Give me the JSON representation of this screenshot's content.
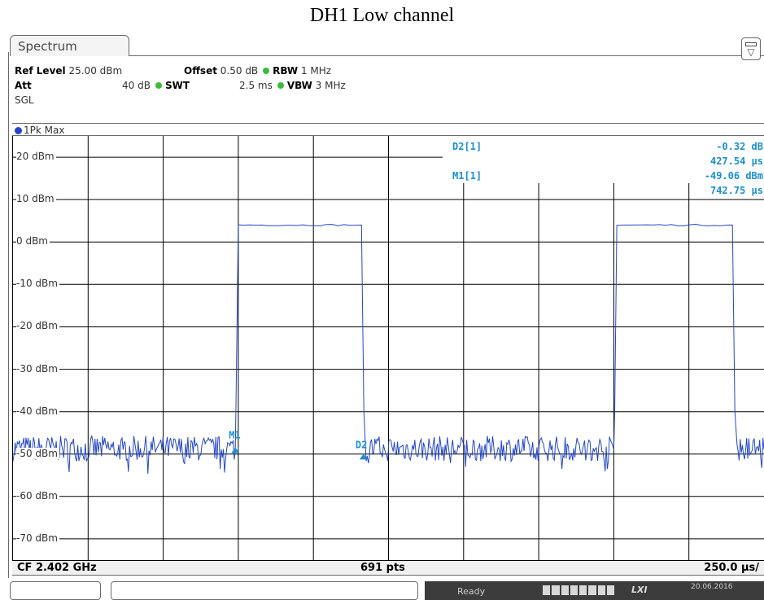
{
  "page": {
    "title": "DH1 Low channel"
  },
  "tab": {
    "label": "Spectrum"
  },
  "settings": {
    "ref_level_label": "Ref Level",
    "ref_level_value": "25.00 dBm",
    "offset_label": "Offset",
    "offset_value": "0.50 dB",
    "rbw_label": "RBW",
    "rbw_value": "1 MHz",
    "att_label": "Att",
    "att_value": "40 dB",
    "swt_label": "SWT",
    "swt_value": "2.5 ms",
    "vbw_label": "VBW",
    "vbw_value": "3 MHz",
    "mode": "SGL"
  },
  "trace": {
    "label": "1Pk Max",
    "color": "#2346c8"
  },
  "markers": {
    "d2_label": "D2[1]",
    "d2_level": "-0.32 dB",
    "d2_time": "427.54 µs",
    "m1_label": "M1[1]",
    "m1_level": "-49.06 dBm",
    "m1_time": "742.75 µs",
    "m1_tag": "M1",
    "d2_tag": "D2",
    "marker_color": "#1a8fd0"
  },
  "footer": {
    "cf": "CF 2.402 GHz",
    "points": "691 pts",
    "span_per_div": "250.0 µs/"
  },
  "status": {
    "ready": "Ready",
    "date": "20.06.2016"
  },
  "chart_data": {
    "type": "line",
    "xlabel": "",
    "ylabel": "",
    "ylim": [
      -75,
      25
    ],
    "xlim_us": [
      0,
      2500
    ],
    "grid": true,
    "y_ticks": [
      "20 dBm",
      "10 dBm",
      "0 dBm",
      "-10 dBm",
      "-20 dBm",
      "-30 dBm",
      "-40 dBm",
      "-50 dBm",
      "-60 dBm",
      "-70 dBm"
    ],
    "series": [
      {
        "x_us": [
          0,
          740,
          742,
          750,
          1160,
          1168,
          1172,
          2000,
          2003,
          2010,
          2395,
          2403,
          2410,
          2500
        ],
        "y_dbm": [
          -49,
          -49,
          -40,
          4,
          4,
          -40,
          -49,
          -49,
          -40,
          4,
          4,
          -40,
          -49,
          -49
        ]
      }
    ],
    "noise_floor_dbm": -49,
    "noise_ripple_db": 3,
    "burst_top_dbm": 4
  }
}
